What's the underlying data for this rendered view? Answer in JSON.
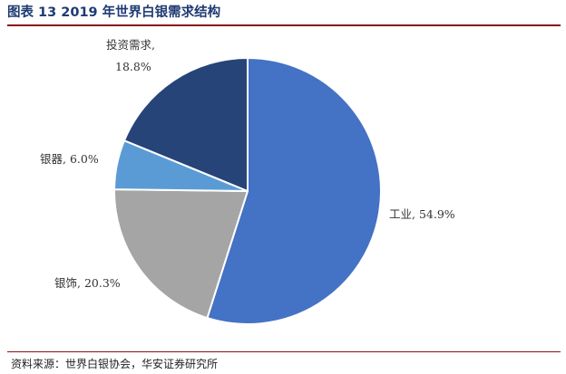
{
  "title": "图表 13 2019 年世界白银需求结构",
  "source": "资料来源：世界白银协会，华安证券研究所",
  "chart_data": {
    "type": "pie",
    "title": "图表 13 2019 年世界白银需求结构",
    "slices": [
      {
        "name": "工业",
        "value": 54.9,
        "label": "工业, 54.9%",
        "color": "#4472c4"
      },
      {
        "name": "银饰",
        "value": 20.3,
        "label": "银饰, 20.3%",
        "color": "#a5a5a5"
      },
      {
        "name": "银器",
        "value": 6.0,
        "label": "银器, 6.0%",
        "color": "#5b9bd5"
      },
      {
        "name": "投资需求",
        "value": 18.8,
        "label_lines": [
          "投资需求,",
          "18.8%"
        ],
        "color": "#264478"
      }
    ],
    "start": "12 o'clock",
    "direction": "clockwise",
    "legend": "none"
  }
}
